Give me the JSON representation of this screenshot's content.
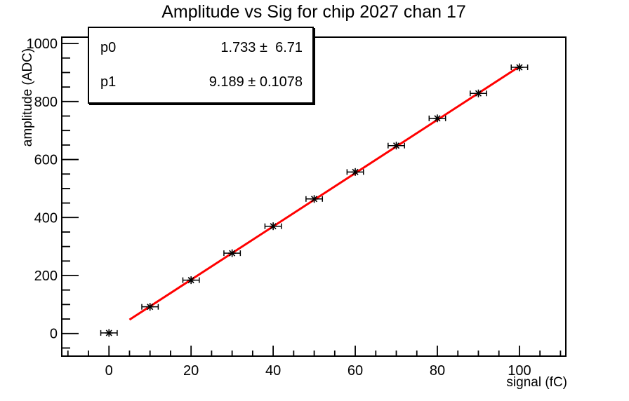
{
  "title": "Amplitude vs Sig for chip 2027 chan 17",
  "stats": {
    "rows": [
      {
        "param": "p0",
        "value": "1.733 ±  6.71"
      },
      {
        "param": "p1",
        "value": "9.189 ± 0.1078"
      }
    ]
  },
  "chart_data": {
    "type": "scatter",
    "title": "Amplitude vs Sig for chip 2027 chan 17",
    "xlabel": "signal (fC)",
    "ylabel": "amplitude (ADC)",
    "x": [
      0,
      10,
      20,
      30,
      40,
      50,
      60,
      70,
      80,
      90,
      100
    ],
    "y": [
      2,
      92,
      184,
      277,
      370,
      464,
      557,
      648,
      742,
      828,
      918
    ],
    "x_error": 2,
    "fit": {
      "p0": 1.733,
      "p0_err": 6.71,
      "p1": 9.189,
      "p1_err": 0.1078,
      "x_range": [
        5,
        100
      ],
      "color": "#ff0000"
    },
    "xlim": [
      -11.5,
      111.3
    ],
    "ylim": [
      -78,
      1022
    ],
    "x_ticks": [
      0,
      20,
      40,
      60,
      80,
      100
    ],
    "x_minor_step": 5,
    "y_ticks": [
      0,
      200,
      400,
      600,
      800,
      1000
    ],
    "y_minor_step": 50,
    "grid": false,
    "legend": "none",
    "marker": "asterisk",
    "marker_color": "#000000",
    "axis_color": "#000000"
  }
}
